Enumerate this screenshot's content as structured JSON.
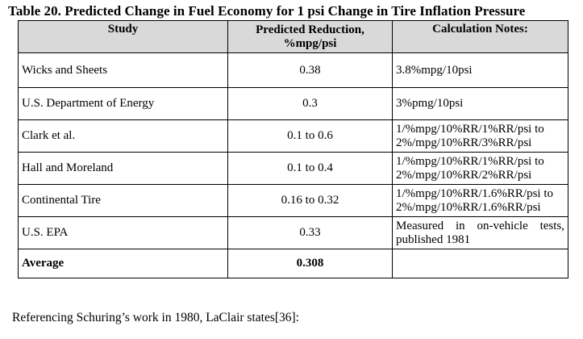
{
  "title": "Table 20. Predicted Change in Fuel Economy for 1 psi Change in Tire Inflation Pressure",
  "table": {
    "headers": {
      "study": "Study",
      "reduction_line1": "Predicted Reduction,",
      "reduction_line2": "%mpg/psi",
      "notes": "Calculation Notes:"
    },
    "rows": [
      {
        "study": "Wicks and Sheets",
        "reduction": "0.38",
        "notes_line1": "3.8%mpg/10psi",
        "notes_line2": ""
      },
      {
        "study": "U.S. Department of Energy",
        "reduction": "0.3",
        "notes_line1": "3%pmg/10psi",
        "notes_line2": ""
      },
      {
        "study": "Clark et al.",
        "reduction": "0.1 to 0.6",
        "notes_line1": "1/%mpg/10%RR/1%RR/psi to",
        "notes_line2": "2%/mpg/10%RR/3%RR/psi"
      },
      {
        "study": "Hall and Moreland",
        "reduction": "0.1 to 0.4",
        "notes_line1": "1/%mpg/10%RR/1%RR/psi to",
        "notes_line2": "2%/mpg/10%RR/2%RR/psi"
      },
      {
        "study": "Continental Tire",
        "reduction": "0.16 to 0.32",
        "notes_line1": "1/%mpg/10%RR/1.6%RR/psi to",
        "notes_line2": "2%/mpg/10%RR/1.6%RR/psi"
      },
      {
        "study": "U.S. EPA",
        "reduction": "0.33",
        "notes_line1": "Measured in on-vehicle tests,",
        "notes_line2": "published 1981"
      }
    ],
    "average": {
      "label": "Average",
      "value": "0.308",
      "notes": ""
    }
  },
  "footer": "Referencing Schuring’s work in 1980, LaClair states[36]:"
}
